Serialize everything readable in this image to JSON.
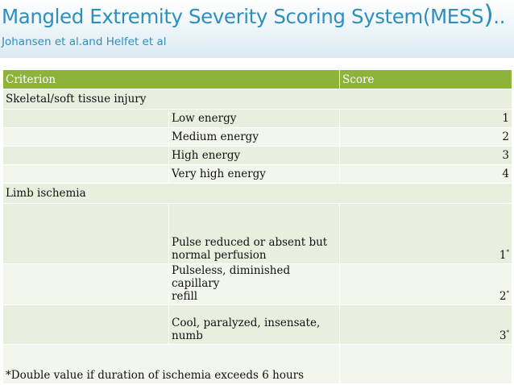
{
  "slide": {
    "title": "Mangled Extremity Severity Scoring System(MESS",
    "title_paren": ")",
    "title_dots": "..",
    "subtitle": "Johansen et al.and Helfet et al"
  },
  "table": {
    "headers": {
      "criterion": "Criterion",
      "score": "Score"
    },
    "skeletal": {
      "label": "Skeletal/soft tissue injury",
      "rows": [
        {
          "description": "Low energy",
          "score": "1"
        },
        {
          "description": "Medium energy",
          "score": "2"
        },
        {
          "description": "High energy",
          "score": "3"
        },
        {
          "description": "Very high energy",
          "score": "4"
        }
      ]
    },
    "ischemia": {
      "label": "Limb ischemia",
      "rows": [
        {
          "line1": "Pulse reduced or absent but",
          "line2": "normal perfusion",
          "score": "1",
          "mark": "*"
        },
        {
          "line1": "Pulseless, diminished capillary",
          "line2": "refill",
          "score": "2",
          "mark": "*"
        },
        {
          "line1": "Cool, paralyzed, insensate,",
          "line2": "numb",
          "score": "3",
          "mark": "*"
        }
      ]
    },
    "footnote": "*Double value if duration of ischemia exceeds 6 hours"
  }
}
